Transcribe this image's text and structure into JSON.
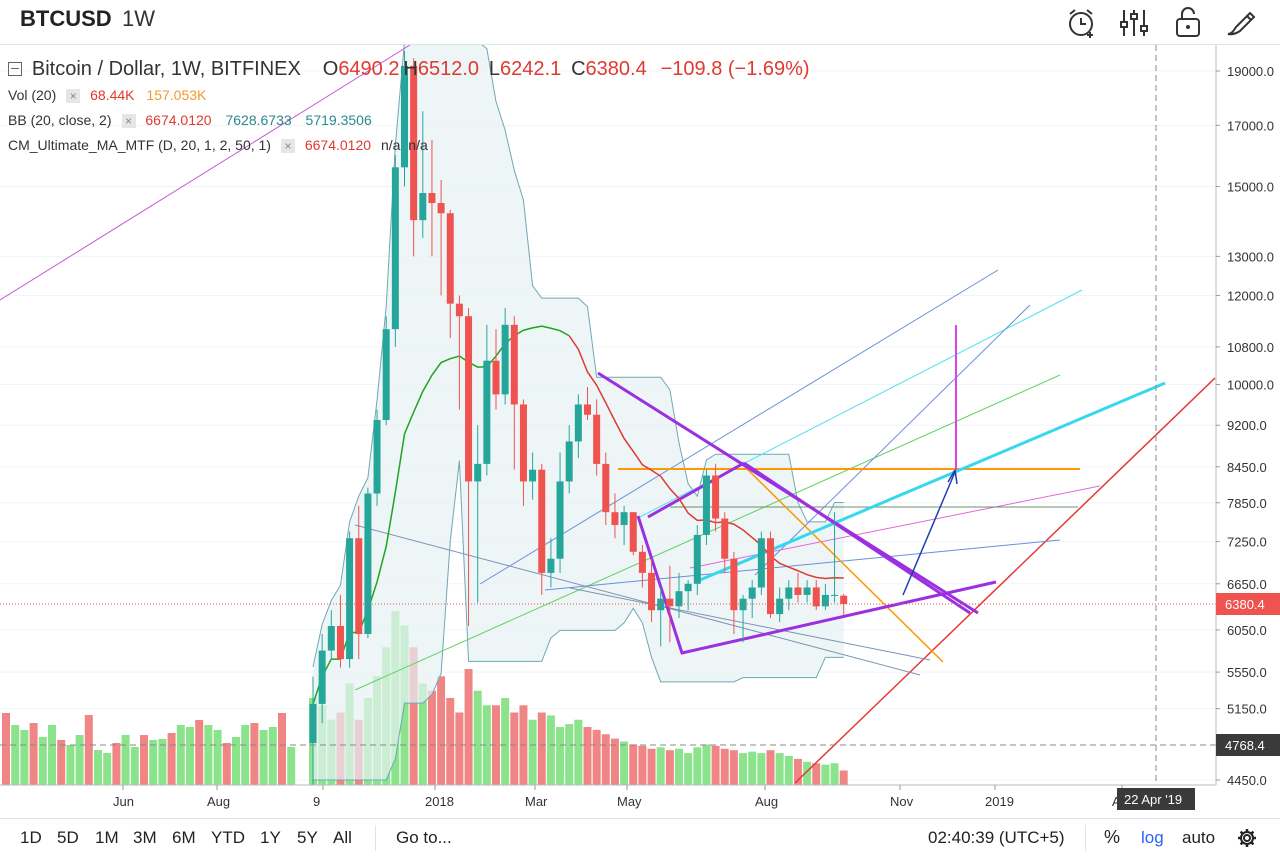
{
  "header": {
    "symbol": "BTCUSD",
    "interval": "1W",
    "icons": [
      "alarm-add-icon",
      "indicators-icon",
      "lock-icon",
      "drawing-brush-icon"
    ]
  },
  "legend": {
    "title": "Bitcoin / Dollar, 1W, BITFINEX",
    "ohlc": {
      "o_label": "O",
      "o": "6490.2",
      "h_label": "H",
      "h": "6512.0",
      "l_label": "L",
      "l": "6242.1",
      "c_label": "C",
      "c": "6380.4",
      "change": "−109.8 (−1.69%)"
    },
    "vol": {
      "label": "Vol (20)",
      "v1": "68.44K",
      "v2": "157.053K"
    },
    "bb": {
      "label": "BB (20, close, 2)",
      "v1": "6674.0120",
      "v2": "7628.6733",
      "v3": "5719.3506"
    },
    "ma": {
      "label": "CM_Ultimate_MA_MTF (D, 20, 1, 2, 50, 1)",
      "v1": "6674.0120",
      "v2": "n/a",
      "v3": "n/a"
    }
  },
  "price_axis": {
    "ticks": [
      "19000.0",
      "17000.0",
      "15000.0",
      "13000.0",
      "12000.0",
      "10800.0",
      "10000.0",
      "9200.0",
      "8450.0",
      "7850.0",
      "7250.0",
      "6650.0",
      "6050.0",
      "5550.0",
      "5150.0",
      "4450.0"
    ],
    "last_price": "6380.4",
    "crosshair_price": "4768.4"
  },
  "time_axis": {
    "ticks": [
      "Jun",
      "Aug",
      "9",
      "2018",
      "Mar",
      "May",
      "Aug",
      "Nov",
      "2019",
      "A"
    ],
    "crosshair_date": "22 Apr '19"
  },
  "chart_data": {
    "type": "candlestick",
    "symbol": "BTCUSD",
    "interval": "1W",
    "y_scale": "log",
    "ylim": [
      4450,
      19800
    ],
    "colors": {
      "up": "#26a69a",
      "down": "#ef5350",
      "vol_up": "#8be38b",
      "vol_down": "#f08585",
      "ma": "#e0392f",
      "ma_green": "#1fa51f",
      "bb_fill": "#e5f1f4",
      "bb_line": "#6fa8b3"
    },
    "candles": [
      {
        "o": 4800,
        "h": 5500,
        "l": 4400,
        "c": 5200
      },
      {
        "o": 5200,
        "h": 6000,
        "l": 5000,
        "c": 5800
      },
      {
        "o": 5800,
        "h": 6300,
        "l": 5700,
        "c": 6100
      },
      {
        "o": 6100,
        "h": 6500,
        "l": 5600,
        "c": 5700
      },
      {
        "o": 5700,
        "h": 7400,
        "l": 5600,
        "c": 7300
      },
      {
        "o": 7300,
        "h": 7800,
        "l": 5700,
        "c": 6000
      },
      {
        "o": 6000,
        "h": 8100,
        "l": 5950,
        "c": 8000
      },
      {
        "o": 8000,
        "h": 9500,
        "l": 7800,
        "c": 9300
      },
      {
        "o": 9300,
        "h": 11500,
        "l": 9200,
        "c": 11200
      },
      {
        "o": 11200,
        "h": 16000,
        "l": 10800,
        "c": 15600
      },
      {
        "o": 15600,
        "h": 19800,
        "l": 15000,
        "c": 19200
      },
      {
        "o": 19200,
        "h": 19500,
        "l": 13000,
        "c": 14000
      },
      {
        "o": 14000,
        "h": 17500,
        "l": 13500,
        "c": 14800
      },
      {
        "o": 14800,
        "h": 16500,
        "l": 13000,
        "c": 14500
      },
      {
        "o": 14500,
        "h": 15200,
        "l": 12000,
        "c": 14200
      },
      {
        "o": 14200,
        "h": 14300,
        "l": 11000,
        "c": 11800
      },
      {
        "o": 11800,
        "h": 12000,
        "l": 9500,
        "c": 11500
      },
      {
        "o": 11500,
        "h": 11700,
        "l": 6100,
        "c": 8200
      },
      {
        "o": 8200,
        "h": 9200,
        "l": 6400,
        "c": 8500
      },
      {
        "o": 8500,
        "h": 11300,
        "l": 8300,
        "c": 10500
      },
      {
        "o": 10500,
        "h": 11200,
        "l": 9500,
        "c": 9800
      },
      {
        "o": 9800,
        "h": 11700,
        "l": 9600,
        "c": 11300
      },
      {
        "o": 11300,
        "h": 11500,
        "l": 8400,
        "c": 9600
      },
      {
        "o": 9600,
        "h": 9700,
        "l": 7800,
        "c": 8200
      },
      {
        "o": 8200,
        "h": 8700,
        "l": 7900,
        "c": 8400
      },
      {
        "o": 8400,
        "h": 8500,
        "l": 6500,
        "c": 6800
      },
      {
        "o": 6800,
        "h": 7300,
        "l": 6600,
        "c": 7000
      },
      {
        "o": 7000,
        "h": 8700,
        "l": 6800,
        "c": 8200
      },
      {
        "o": 8200,
        "h": 9200,
        "l": 8000,
        "c": 8900
      },
      {
        "o": 8900,
        "h": 9800,
        "l": 8600,
        "c": 9600
      },
      {
        "o": 9600,
        "h": 9950,
        "l": 9300,
        "c": 9400
      },
      {
        "o": 9400,
        "h": 9700,
        "l": 8300,
        "c": 8500
      },
      {
        "o": 8500,
        "h": 8700,
        "l": 7500,
        "c": 7700
      },
      {
        "o": 7700,
        "h": 8000,
        "l": 7300,
        "c": 7500
      },
      {
        "o": 7500,
        "h": 7800,
        "l": 7200,
        "c": 7700
      },
      {
        "o": 7700,
        "h": 7700,
        "l": 7050,
        "c": 7100
      },
      {
        "o": 7100,
        "h": 7200,
        "l": 6600,
        "c": 6800
      },
      {
        "o": 6800,
        "h": 7000,
        "l": 6150,
        "c": 6300
      },
      {
        "o": 6300,
        "h": 6600,
        "l": 5850,
        "c": 6450
      },
      {
        "o": 6450,
        "h": 6900,
        "l": 5900,
        "c": 6350
      },
      {
        "o": 6350,
        "h": 6800,
        "l": 6200,
        "c": 6550
      },
      {
        "o": 6550,
        "h": 6700,
        "l": 6300,
        "c": 6650
      },
      {
        "o": 6650,
        "h": 7500,
        "l": 6500,
        "c": 7350
      },
      {
        "o": 7350,
        "h": 8400,
        "l": 7200,
        "c": 8300
      },
      {
        "o": 8300,
        "h": 8500,
        "l": 7400,
        "c": 7600
      },
      {
        "o": 7600,
        "h": 7700,
        "l": 6800,
        "c": 7000
      },
      {
        "o": 7000,
        "h": 7100,
        "l": 6000,
        "c": 6300
      },
      {
        "o": 6300,
        "h": 6500,
        "l": 5900,
        "c": 6450
      },
      {
        "o": 6450,
        "h": 6700,
        "l": 6200,
        "c": 6600
      },
      {
        "o": 6600,
        "h": 7400,
        "l": 6500,
        "c": 7300
      },
      {
        "o": 7300,
        "h": 7400,
        "l": 6200,
        "c": 6250
      },
      {
        "o": 6250,
        "h": 6600,
        "l": 6150,
        "c": 6450
      },
      {
        "o": 6450,
        "h": 6700,
        "l": 6300,
        "c": 6600
      },
      {
        "o": 6600,
        "h": 6800,
        "l": 6400,
        "c": 6500
      },
      {
        "o": 6500,
        "h": 6700,
        "l": 6400,
        "c": 6600
      },
      {
        "o": 6600,
        "h": 6700,
        "l": 6300,
        "c": 6350
      },
      {
        "o": 6350,
        "h": 6650,
        "l": 6300,
        "c": 6500
      },
      {
        "o": 6500,
        "h": 7700,
        "l": 6400,
        "c": 6500
      },
      {
        "o": 6490.2,
        "h": 6512.0,
        "l": 6242.1,
        "c": 6380.4
      }
    ],
    "volume": [
      60,
      55,
      45,
      50,
      70,
      45,
      60,
      75,
      95,
      120,
      110,
      95,
      70,
      65,
      75,
      60,
      50,
      80,
      65,
      55,
      55,
      60,
      50,
      55,
      45,
      50,
      48,
      40,
      42,
      45,
      40,
      38,
      35,
      32,
      30,
      28,
      27,
      25,
      26,
      24,
      25,
      22,
      26,
      28,
      27,
      25,
      24,
      22,
      23,
      22,
      24,
      22,
      20,
      18,
      16,
      15,
      14,
      15,
      10
    ],
    "indicators": {
      "vol_period": 20,
      "bb": {
        "period": 20,
        "source": "close",
        "mult": 2,
        "basis": 6674.012,
        "upper": 7628.6733,
        "lower": 5719.3506
      },
      "ma": {
        "name": "CM_Ultimate_MA_MTF",
        "params": "D, 20, 1, 2, 50, 1",
        "value": 6674.012
      }
    },
    "drawings": [
      "symmetrical-triangle",
      "horizontal-resistance-8450",
      "fibonacci-fan-lines",
      "projection-arrows",
      "long-term-trendline"
    ]
  },
  "bottom": {
    "ranges": [
      "1D",
      "5D",
      "1M",
      "3M",
      "6M",
      "YTD",
      "1Y",
      "5Y",
      "All"
    ],
    "goto": "Go to...",
    "clock": "02:40:39 (UTC+5)",
    "percent": "%",
    "log": "log",
    "auto": "auto",
    "icons": [
      "settings-icon"
    ]
  }
}
